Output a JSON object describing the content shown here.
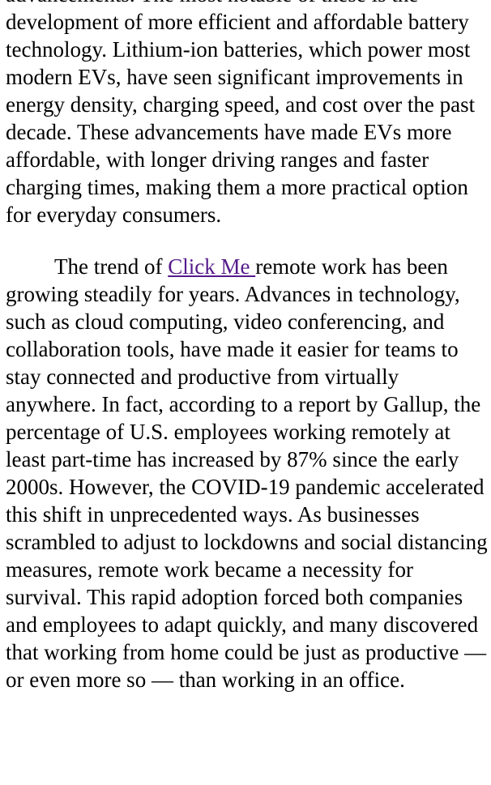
{
  "article": {
    "para1": {
      "text": "advancements. The most notable of these is the development of more efficient and affordable battery technology. Lithium-ion batteries, which power most modern EVs, have seen significant improvements in energy density, charging speed, and cost over the past decade. These advancements have made EVs more affordable, with longer driving ranges and faster charging times, making them a more practical option for everyday consumers."
    },
    "para2": {
      "before_link": "The trend of ",
      "link_text": "Click Me ",
      "after_link": "remote work has been growing steadily for years. Advances in technology, such as cloud computing, video conferencing, and collaboration tools, have made it easier for teams to stay connected and productive from virtually anywhere. In fact, according to a report by Gallup, the percentage of U.S. employees working remotely at least part-time has increased by 87% since the early 2000s. However, the COVID-19 pandemic accelerated this shift in unprecedented ways. As businesses scrambled to adjust to lockdowns and social distancing measures, remote work became a necessity for survival. This rapid adoption forced both companies and employees to adapt quickly, and many discovered that working from home could be just as productive — or even more so — than working in an office."
    }
  },
  "colors": {
    "text": "#000000",
    "link": "#551a8b",
    "background": "#ffffff"
  }
}
